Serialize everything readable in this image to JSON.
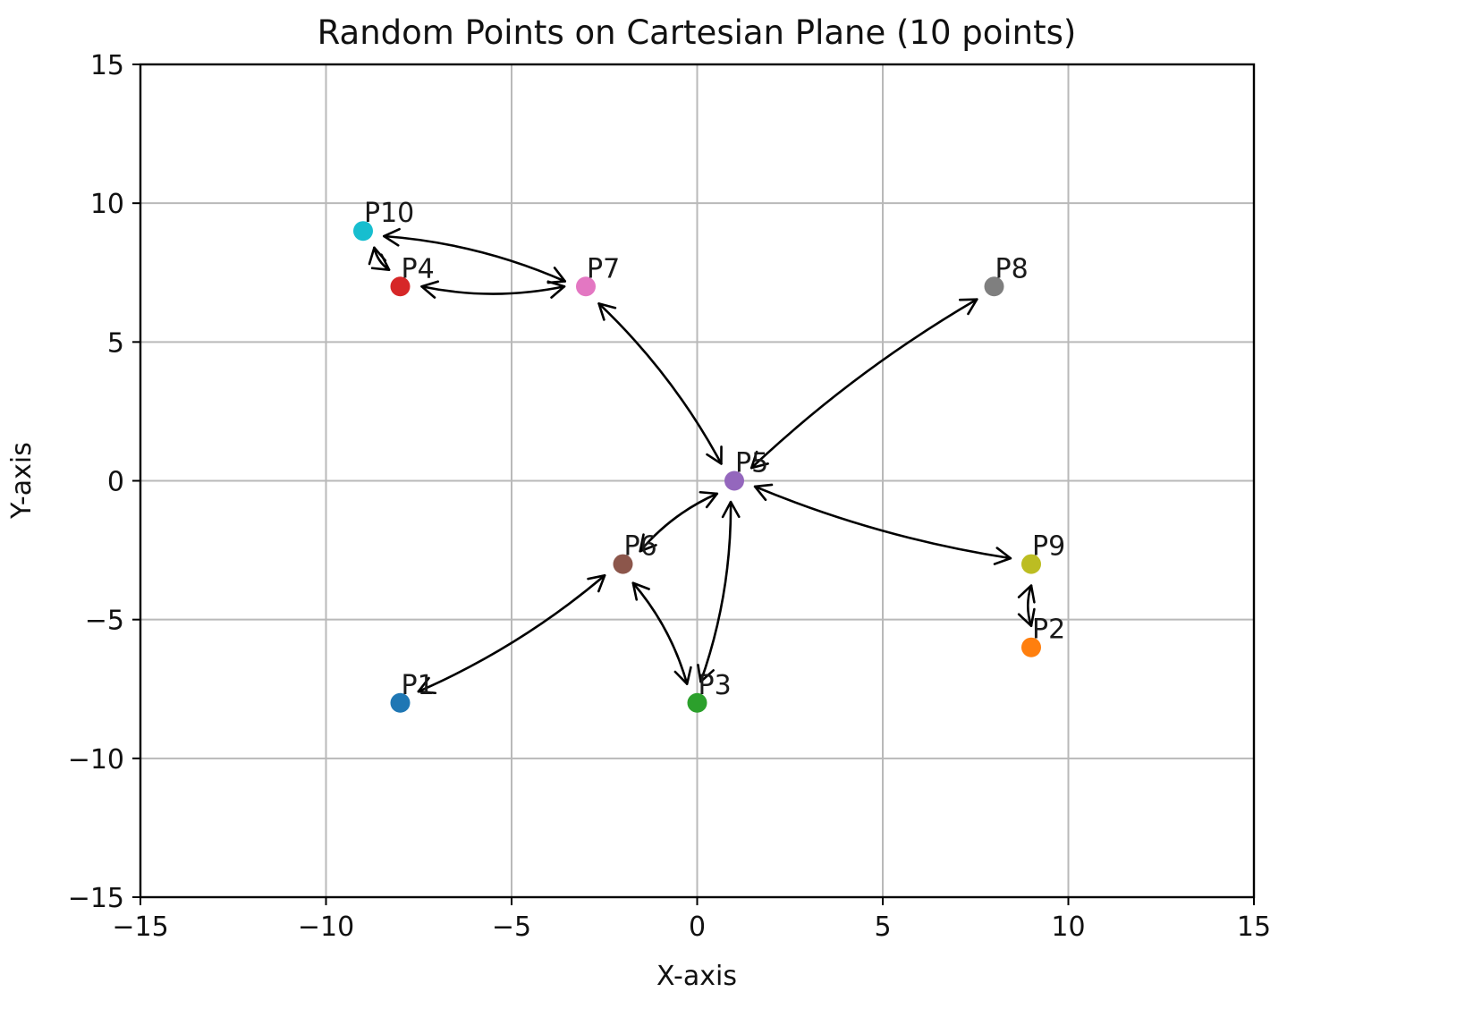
{
  "chart_data": {
    "type": "scatter",
    "title": "Random Points on Cartesian Plane (10 points)",
    "xlabel": "X-axis",
    "ylabel": "Y-axis",
    "xlim": [
      -15,
      15
    ],
    "ylim": [
      -15,
      15
    ],
    "xticks": [
      -15,
      -10,
      -5,
      0,
      5,
      10,
      15
    ],
    "yticks": [
      -15,
      -10,
      -5,
      0,
      5,
      10,
      15
    ],
    "xtick_labels": [
      "−15",
      "−10",
      "−5",
      "0",
      "5",
      "10",
      "15"
    ],
    "ytick_labels": [
      "−15",
      "−10",
      "−5",
      "0",
      "5",
      "10",
      "15"
    ],
    "grid": true,
    "points": [
      {
        "label": "P1",
        "x": -8,
        "y": -8,
        "color": "#1f77b4"
      },
      {
        "label": "P2",
        "x": 9,
        "y": -6,
        "color": "#ff7f0e"
      },
      {
        "label": "P3",
        "x": 0,
        "y": -8,
        "color": "#2ca02c"
      },
      {
        "label": "P4",
        "x": -8,
        "y": 7,
        "color": "#d62728"
      },
      {
        "label": "P5",
        "x": 1,
        "y": 0,
        "color": "#9467bd"
      },
      {
        "label": "P6",
        "x": -2,
        "y": -3,
        "color": "#8c564b"
      },
      {
        "label": "P7",
        "x": -3,
        "y": 7,
        "color": "#e377c2"
      },
      {
        "label": "P8",
        "x": 8,
        "y": 7,
        "color": "#7f7f7f"
      },
      {
        "label": "P9",
        "x": 9,
        "y": -3,
        "color": "#bcbd22"
      },
      {
        "label": "P10",
        "x": -9,
        "y": 9,
        "color": "#17becf"
      }
    ],
    "annotations": {
      "type": "hand-drawn double-headed arrows",
      "connections": [
        [
          "P10",
          "P4"
        ],
        [
          "P10",
          "P7"
        ],
        [
          "P4",
          "P7"
        ],
        [
          "P7",
          "P5"
        ],
        [
          "P8",
          "P5"
        ],
        [
          "P9",
          "P5"
        ],
        [
          "P9",
          "P2"
        ],
        [
          "P6",
          "P5"
        ],
        [
          "P1",
          "P6"
        ],
        [
          "P6",
          "P3"
        ],
        [
          "P3",
          "P5"
        ]
      ]
    }
  }
}
